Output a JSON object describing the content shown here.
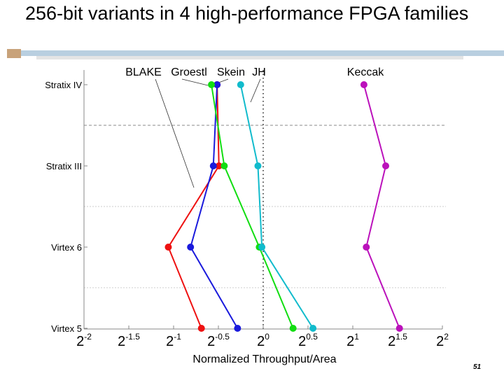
{
  "title": "256-bit variants in 4 high-performance FPGA families",
  "page_number": "51",
  "chart_data": {
    "type": "line",
    "x_label": "Normalized Throughput/Area",
    "x_log_base": 2,
    "categories": [
      "Stratix IV",
      "Stratix III",
      "Virtex 6",
      "Virtex 5"
    ],
    "xlim": [
      0.25,
      4
    ],
    "xticks": [
      {
        "value": 0.25,
        "label": "2^-2"
      },
      {
        "value": 0.3536,
        "label": "2^-1.5"
      },
      {
        "value": 0.5,
        "label": "2^-1"
      },
      {
        "value": 0.7071,
        "label": "2^-0.5"
      },
      {
        "value": 1,
        "label": "2^0"
      },
      {
        "value": 1.4142,
        "label": "2^0.5"
      },
      {
        "value": 2,
        "label": "2^1"
      },
      {
        "value": 2.8284,
        "label": "2^1.5"
      },
      {
        "value": 4,
        "label": "2^2"
      }
    ],
    "reference_x": 1,
    "series": [
      {
        "name": "BLAKE",
        "color": "#ee1111",
        "values": [
          0.7,
          0.71,
          0.48,
          0.62
        ]
      },
      {
        "name": "Groestl",
        "color": "#1a1adc",
        "values": [
          0.7,
          0.68,
          0.57,
          0.82
        ]
      },
      {
        "name": "Skein",
        "color": "#11dd11",
        "values": [
          0.67,
          0.74,
          0.97,
          1.26
        ]
      },
      {
        "name": "JH",
        "color": "#11bbcc",
        "values": [
          0.84,
          0.96,
          0.99,
          1.47
        ]
      },
      {
        "name": "Keccak",
        "color": "#bb11bb",
        "values": [
          2.18,
          2.58,
          2.22,
          2.87
        ]
      }
    ]
  }
}
